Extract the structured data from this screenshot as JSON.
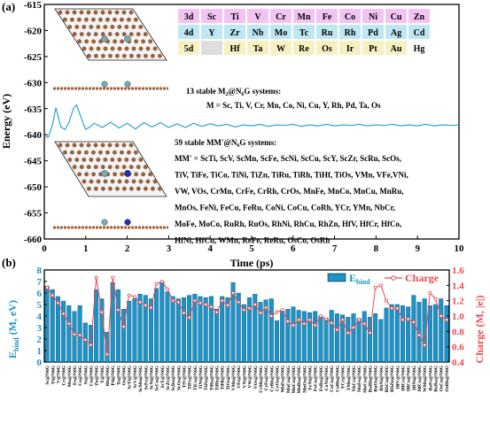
{
  "figure": {
    "panel_a": {
      "label": "(a)",
      "xlabel": "Time (ps)",
      "ylabel": "Energy (eV)",
      "xlim": [
        0,
        10
      ],
      "ylim": [
        -660,
        -615
      ],
      "xticks": [
        "0",
        "1",
        "2",
        "3",
        "4",
        "5",
        "6",
        "7",
        "8",
        "9",
        "10"
      ],
      "yticks": [
        "-615",
        "-620",
        "-625",
        "-630",
        "-635",
        "-640",
        "-645",
        "-650",
        "-655",
        "-660"
      ],
      "line_color": "#1f9bd7",
      "periodic_table": {
        "rows": [
          [
            "3d",
            "Sc",
            "Ti",
            "V",
            "Cr",
            "Mn",
            "Fe",
            "Co",
            "Ni",
            "Cu",
            "Zn"
          ],
          [
            "4d",
            "Y",
            "Zr",
            "Nb",
            "Mo",
            "Tc",
            "Ru",
            "Rh",
            "Pd",
            "Ag",
            "Cd"
          ],
          [
            "5d",
            "",
            "Hf",
            "Ta",
            "W",
            "Re",
            "Os",
            "Ir",
            "Pt",
            "Au",
            "Hg"
          ]
        ],
        "row_colors": [
          "#f3c4f3",
          "#bfe6f3",
          "#f7f1c1"
        ],
        "empty_color": "#dedede"
      },
      "text_stable_M2": "13 stable M",
      "text_stable_M2_sub": "2",
      "text_stable_M2_rest": "@N",
      "text_stable_M2_sub2": "6",
      "text_stable_M2_end": "G systems:",
      "text_M_list": "M = Sc, Ti, V, Cr, Mn, Co, Ni, Cu, Y, Rh, Pd, Ta, Os",
      "text_stable_MM": "59 stable  MM'@N",
      "text_stable_MM_sub": "6",
      "text_stable_MM_end": "G systems:",
      "mm_lines": [
        "MM' = ScTi, ScV, ScMn, ScFe, ScNi, ScCu, ScY, ScZr, ScRu, ScOs,",
        "TiV, TiFe, TiCo, TiNi, TiZn, TiRu, TiRh, TiHf, TiOs, VMn, VFe,VNi,",
        "VW, VOs, CrMn, CrFe, CrRh, CrOs, MnFe, MnCo, MnCu, MnRu,",
        "MnOs, FeNi, FeCu, FeRu, CoNi, CoCu, CoRh, YCr, YMn, NbCr,",
        "MoFe, MoCo, RuRh, RuOs, RhNi, RhCu, RhZn, HfV, HfCr, HfCo,",
        "HfNi, HfCu, WMn, ReFe, ReRu, OsCo, OsRh"
      ],
      "energy_series": {
        "t": [
          0,
          0.1,
          0.2,
          0.28,
          0.4,
          0.5,
          0.6,
          0.7,
          0.78,
          0.9,
          1.0,
          1.1,
          1.2,
          1.4,
          1.6,
          1.8,
          2.0,
          2.2,
          2.4,
          2.6,
          2.8,
          3.0,
          3.2,
          3.4,
          3.6,
          3.8,
          4.0,
          4.2,
          4.4,
          4.6,
          4.8,
          5.0,
          5.2,
          5.4,
          5.6,
          5.8,
          6.0,
          6.2,
          6.4,
          6.6,
          6.8,
          7.0,
          7.2,
          7.4,
          7.6,
          7.8,
          8.0,
          8.2,
          8.4,
          8.6,
          8.8,
          9.0,
          9.2,
          9.4,
          9.6,
          9.8,
          10.0
        ],
        "e": [
          -640.5,
          -640.4,
          -638.0,
          -634.8,
          -638.5,
          -639.0,
          -637.5,
          -635.0,
          -634.3,
          -637.0,
          -639.0,
          -638.5,
          -637.8,
          -638.6,
          -637.6,
          -638.7,
          -637.8,
          -638.9,
          -637.7,
          -638.5,
          -637.7,
          -638.6,
          -637.9,
          -638.6,
          -637.8,
          -638.4,
          -637.9,
          -638.3,
          -638.0,
          -638.5,
          -638.1,
          -638.3,
          -638.0,
          -638.4,
          -638.1,
          -638.2,
          -638.0,
          -638.4,
          -638.1,
          -638.3,
          -638.0,
          -638.3,
          -638.1,
          -638.2,
          -638.0,
          -638.3,
          -638.1,
          -638.2,
          -638.0,
          -638.3,
          -638.1,
          -638.3,
          -638.0,
          -638.3,
          -638.1,
          -638.2,
          -638.1
        ]
      }
    },
    "panel_b": {
      "label": "(b)",
      "ylabel_left": "E",
      "ylabel_left_sub": "bind",
      "ylabel_left_unit": " (M, eV)",
      "ylabel_right": "Charge (M, |e|)",
      "ylim_left": [
        0,
        8
      ],
      "ylim_right": [
        0.4,
        1.6
      ],
      "yticks_left": [
        "0",
        "1",
        "2",
        "3",
        "4",
        "5",
        "6",
        "7",
        "8"
      ],
      "yticks_right": [
        "0.4",
        "0.6",
        "0.8",
        "1.0",
        "1.2",
        "1.4",
        "1.6"
      ],
      "bar_color": "#1b93c9",
      "line_color": "#e84a50",
      "legend_bind": "E",
      "legend_bind_sub": "bind",
      "legend_charge": "Charge"
    },
    "xlabel_suffix": "@N6G"
  },
  "chart_data": [
    {
      "type": "line",
      "title": "",
      "xlabel": "Time (ps)",
      "ylabel": "Energy (eV)",
      "xlim": [
        0,
        10
      ],
      "ylim": [
        -660,
        -615
      ],
      "grid": false
    },
    {
      "type": "bar",
      "ylabel": "Ebind (M, eV)",
      "ylabel_right": "Charge (M, |e|)",
      "categories": [
        "Sc",
        "Ti",
        "V",
        "Cr",
        "Mn",
        "Fe",
        "Co",
        "Ni",
        "Cu",
        "Zn",
        "Y",
        "Rh",
        "Pd",
        "Ta",
        "Os",
        "ScTi",
        "ScV",
        "ScMn",
        "ScFe",
        "ScNi",
        "ScCu",
        "ScY",
        "ScZr",
        "ScRu",
        "ScOs",
        "TiV",
        "TiFe",
        "TiCo",
        "TiNi",
        "TiZn",
        "TiRu",
        "TiRh",
        "TiHf",
        "TiOs",
        "VMn",
        "VFe",
        "VNi",
        "VW",
        "VOs",
        "CrMn",
        "CrFe",
        "CrRh",
        "CrOs",
        "MnFe",
        "MnCo",
        "MnCu",
        "MnRu",
        "MnOs",
        "FeNi",
        "FeCu",
        "FeRu",
        "CoNi",
        "CoCu",
        "CoRh",
        "YCr",
        "YMn",
        "NbCr",
        "MoFe",
        "MoCo",
        "RuRh",
        "RuOs",
        "RhNi",
        "RhCu",
        "RhZn",
        "HfV",
        "HfCr",
        "HfCo",
        "HfNi",
        "HfCu",
        "WMn",
        "ReFe",
        "ReRu",
        "OsCo",
        "OsRh"
      ],
      "series": [
        {
          "name": "Ebind",
          "values": [
            6.6,
            6.3,
            5.7,
            5.3,
            4.9,
            4.4,
            4.9,
            3.4,
            3.2,
            6.3,
            5.5,
            2.6,
            6.9,
            6.3,
            4.6,
            5.3,
            5.5,
            5.9,
            5.8,
            5.5,
            6.4,
            7.0,
            6.1,
            5.7,
            5.5,
            5.6,
            5.8,
            5.9,
            5.7,
            5.6,
            5.7,
            4.6,
            5.7,
            5.6,
            6.9,
            6.0,
            5.0,
            5.6,
            5.9,
            5.2,
            5.4,
            5.5,
            3.6,
            4.4,
            4.6,
            4.8,
            4.5,
            4.4,
            4.3,
            4.4,
            4.0,
            3.8,
            4.5,
            4.2,
            4.1,
            3.9,
            4.2,
            3.8,
            4.4,
            3.9,
            4.2,
            3.7,
            4.7,
            5.0,
            5.0,
            4.9,
            4.8,
            5.8,
            5.2,
            5.5,
            4.9,
            5.0,
            5.5,
            4.9
          ]
        },
        {
          "name": "Charge",
          "values": [
            1.37,
            1.27,
            1.17,
            1.03,
            0.9,
            0.76,
            0.75,
            0.69,
            0.62,
            1.5,
            1.05,
            0.5,
            1.5,
            1.08,
            0.86,
            1.27,
            1.25,
            1.18,
            1.14,
            1.11,
            1.42,
            1.45,
            1.35,
            1.2,
            1.18,
            1.04,
            0.98,
            1.2,
            1.17,
            1.15,
            1.12,
            1.05,
            1.2,
            1.14,
            1.3,
            1.18,
            1.08,
            1.1,
            1.15,
            1.04,
            1.11,
            1.0,
            1.05,
            1.08,
            0.93,
            0.88,
            0.95,
            0.9,
            0.95,
            0.88,
            1.0,
            0.96,
            0.91,
            0.82,
            0.95,
            0.78,
            0.85,
            0.95,
            0.9,
            0.78,
            1.37,
            1.4,
            1.2,
            1.1,
            1.1,
            0.95,
            0.96,
            0.92,
            0.75,
            0.62,
            1.3,
            1.22,
            1.0,
            0.95
          ]
        }
      ],
      "ylim": [
        0,
        8
      ]
    }
  ]
}
